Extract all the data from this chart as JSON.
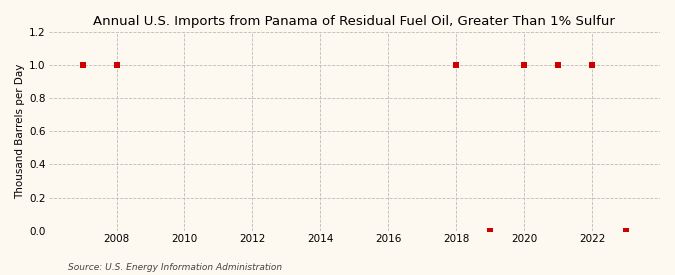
{
  "title": "Annual U.S. Imports from Panama of Residual Fuel Oil, Greater Than 1% Sulfur",
  "ylabel": "Thousand Barrels per Day",
  "source": "Source: U.S. Energy Information Administration",
  "background_color": "#fef9f0",
  "years": [
    2007,
    2008,
    2018,
    2019,
    2020,
    2021,
    2022,
    2023
  ],
  "values": [
    1,
    1,
    1,
    0,
    1,
    1,
    1,
    0
  ],
  "ylim": [
    0.0,
    1.2
  ],
  "yticks": [
    0.0,
    0.2,
    0.4,
    0.6,
    0.8,
    1.0,
    1.2
  ],
  "xlim": [
    2006.0,
    2024.0
  ],
  "xtick_years": [
    2008,
    2010,
    2012,
    2014,
    2016,
    2018,
    2020,
    2022
  ],
  "marker_color": "#cc0000",
  "marker_size": 4,
  "grid_color": "#bbbbbb",
  "grid_linestyle": "--",
  "title_fontsize": 9.5,
  "label_fontsize": 7.5,
  "tick_fontsize": 7.5,
  "source_fontsize": 6.5
}
